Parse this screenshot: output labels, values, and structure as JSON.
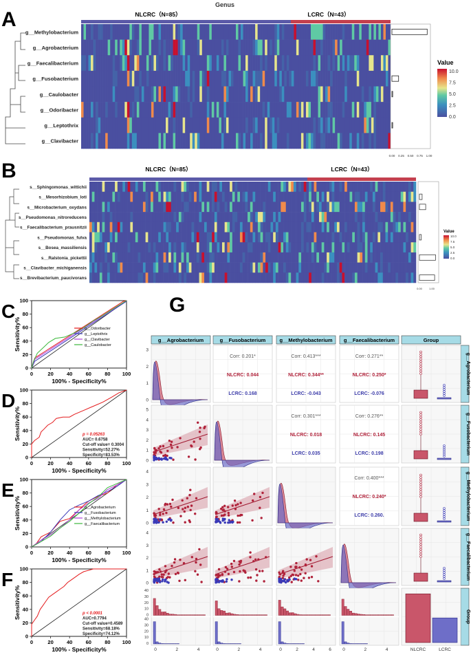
{
  "panel_labels": {
    "A": "A",
    "B": "B",
    "C": "C",
    "D": "D",
    "E": "E",
    "F": "F",
    "G": "G"
  },
  "colors": {
    "nlcrc": "#5b5aa8",
    "lcrc": "#c4404e",
    "heat_low": "#4a4fa0",
    "heat_high": "#c8102e",
    "roc_line1": "#e41a1c",
    "roc_line2": "#3a3ab8",
    "roc_line3": "#b040d8",
    "roc_line4": "#3bb83b",
    "strip": "#a6dbe6",
    "nlcrc_fill": "#c9566a",
    "lcrc_fill": "#6e6ec8"
  },
  "heatmap_a": {
    "title": "Genus",
    "group_nlcrc": "NLCRC（N=85）",
    "group_lcrc": "LCRC（N=43）",
    "rows": [
      "g__Methylobacterium",
      "g__Agrobacterium",
      "g__Faecalibacterium",
      "g__Fusobacterium",
      "g__Caulobacter",
      "g__Odoribacter",
      "g__Leptothrix",
      "g__Clavibacter"
    ],
    "bar_values": [
      0.95,
      0,
      0,
      0.18,
      0.02,
      0,
      0.02,
      0
    ],
    "bar_ticks": [
      "0.00",
      "0.25",
      "0.50",
      "0.75",
      "1.00"
    ],
    "legend_title": "Value",
    "legend_ticks": [
      "10.0",
      "7.5",
      "5.0",
      "2.5",
      "0.0"
    ]
  },
  "heatmap_b": {
    "group_nlcrc": "NLCRC（N=85）",
    "group_lcrc": "LCRC（N=43）",
    "rows": [
      "s__Sphingomonas_wittichii",
      "s__Mesorhizobium_loti",
      "s__Microbacterium_oxydans",
      "s__Pseudomonas_nitroreducens",
      "s__Faecalibacterium_prausnitzii",
      "s__Pseudomonas_fulva",
      "s__Bosea_massiliensis",
      "s__Ralstonia_pickettii",
      "s__Clavibacter_michiganensis",
      "s__Brevibacterium_paucivorans"
    ],
    "bar_values": [
      0,
      0.15,
      0.35,
      0,
      0,
      0.1,
      0,
      0.9,
      0,
      0.85
    ],
    "bar_ticks": [
      "0.00",
      "1.00"
    ],
    "legend_title": "Value",
    "legend_ticks": [
      "10.0",
      "7.5",
      "5.0",
      "2.5",
      "0.0"
    ]
  },
  "roc_common": {
    "xlabel": "100% - Specificity%",
    "ylabel": "Sensitivity%",
    "ticks": [
      "0",
      "20",
      "40",
      "60",
      "80",
      "100"
    ]
  },
  "panel_c": {
    "legend": [
      "g__Odoribacter",
      "g__Leptothrix",
      "g__Clavibacter",
      "g__Caulobacter"
    ]
  },
  "panel_d": {
    "p": "p = 0.05263",
    "auc": "AUC= 0.6758",
    "cutoff": "Cut-off value= 0.3004",
    "sens": "Sensitivity=52.27%",
    "spec": "Specificity=83.53%"
  },
  "panel_e": {
    "legend": [
      "g__Agrobacterium",
      "g__Fusobacterium",
      "g__Methylobacterium",
      "g__Faecalibacterium"
    ]
  },
  "panel_f": {
    "p": "p < 0.0001",
    "auc": "AUC=0.7794",
    "cutoff": "Cut-off value=0.4589",
    "sens": "Sensitivity=68.18%",
    "spec": "Specificity=74.12%"
  },
  "panel_g": {
    "col_headers": [
      "g__Agrobacterium",
      "g__Fusobacterium",
      "g__Methylobacterium",
      "g__Faecalibacterium",
      "Group"
    ],
    "row_headers": [
      "g__Agrobacterium",
      "g__Fusobacterium",
      "g__Methylobacterium",
      "g__Faecalibacterium",
      "Group"
    ],
    "corr": {
      "r0c1": [
        "Corr: 0.201*",
        "NLCRC: 0.044",
        "LCRC: 0.168"
      ],
      "r0c2": [
        "Corr: 0.413***",
        "NLCRC: 0.344**",
        "LCRC: -0.043"
      ],
      "r0c3": [
        "Corr: 0.271**",
        "NLCRC: 0.250*",
        "LCRC: -0.076"
      ],
      "r1c2": [
        "Corr: 0.301***",
        "NLCRC: 0.018",
        "LCRC: 0.035"
      ],
      "r1c3": [
        "Corr: 0.276**",
        "NLCRC: 0.145",
        "LCRC: 0.198"
      ],
      "r2c3": [
        "Corr: 0.400***",
        "NLCRC: 0.240*",
        "LCRC: 0.260."
      ]
    },
    "x_ticks_a": [
      "0",
      "2",
      "4"
    ],
    "x_ticks_m": [
      "0",
      "2",
      "4",
      "6"
    ],
    "y_ticks_r0": [
      "0",
      "1",
      "2",
      "3"
    ],
    "y_ticks_r1": [
      "0",
      "1",
      "2",
      "3",
      "4",
      "5"
    ],
    "y_ticks_r2": [
      "0",
      "1",
      "2",
      "3",
      "4"
    ],
    "y_ticks_r3": [
      "0",
      "1",
      "2",
      "3",
      "4"
    ],
    "y_ticks_hist_top": [
      "0",
      "10",
      "20",
      "30",
      "40"
    ],
    "y_ticks_hist_bot": [
      "0",
      "10",
      "20",
      "30",
      "40"
    ],
    "group_labels": [
      "NLCRC",
      "LCRC"
    ],
    "group_counts": [
      85,
      43
    ]
  }
}
